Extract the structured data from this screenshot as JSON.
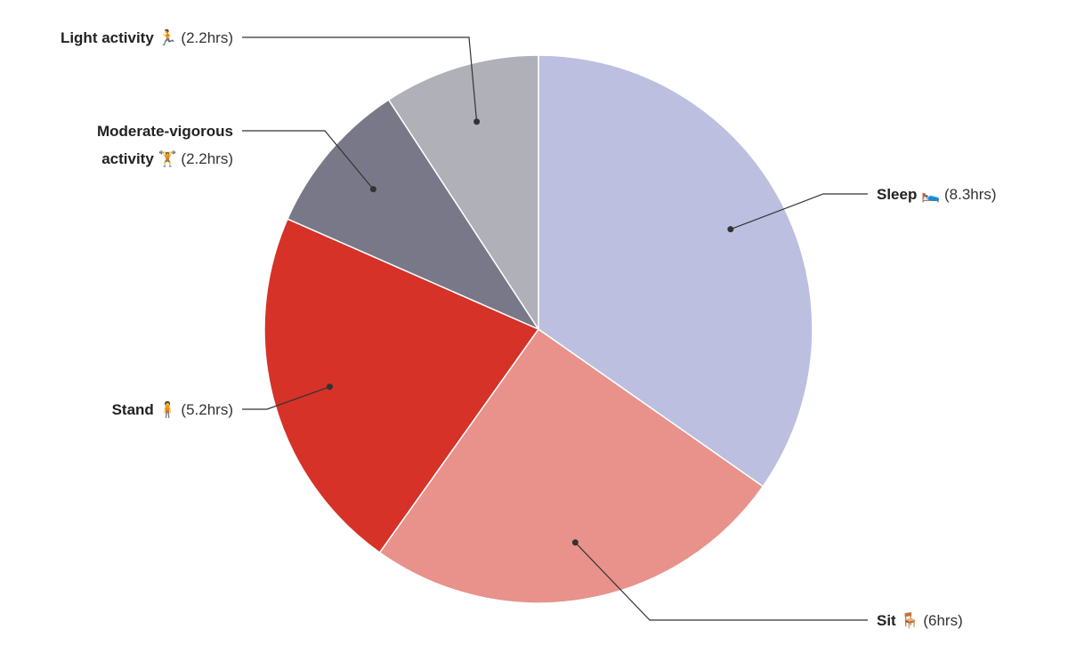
{
  "chart_data": {
    "type": "pie",
    "categories": [
      "Sleep 🛌",
      "Sit 🪑",
      "Stand 🧍",
      "Moderate-vigorous activity 🏋",
      "Light activity 🏃"
    ],
    "values": [
      8.3,
      6,
      5.2,
      2.2,
      2.2
    ],
    "value_labels": [
      "(8.3hrs)",
      "(6hrs)",
      "(5.2hrs)",
      "(2.2hrs)",
      "(2.2hrs)"
    ],
    "colors": [
      "#bcbfe0",
      "#e8928b",
      "#d63228",
      "#797888",
      "#b0b0b8"
    ]
  }
}
